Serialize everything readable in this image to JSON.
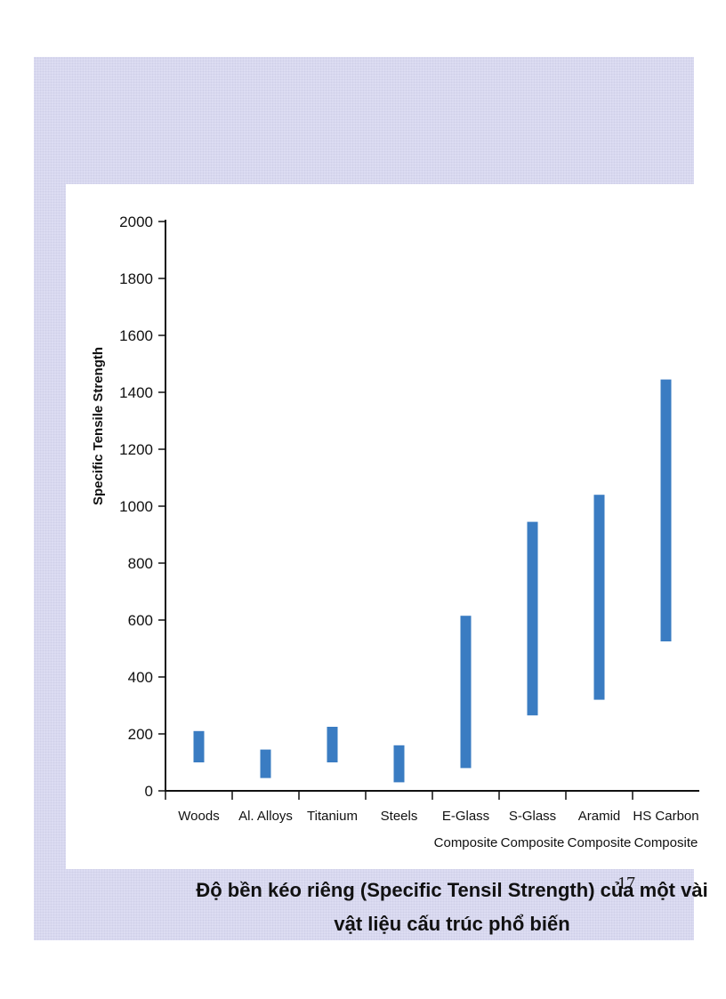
{
  "slide": {
    "caption_line1": "Độ bền kéo riêng (Specific Tensil Strength) của một vài",
    "caption_line2": "vật liệu cấu trúc phổ biến",
    "page_number": "17"
  },
  "colors": {
    "bar": "#3a7cc2",
    "axis": "#111111"
  },
  "chart_data": {
    "type": "bar",
    "subtype": "floating-range",
    "title": "",
    "xlabel": "",
    "ylabel": "Specific Tensile Strength",
    "ylim": [
      0,
      2000
    ],
    "yticks": [
      "0",
      "200",
      "400",
      "600",
      "800",
      "1000",
      "1200",
      "1400",
      "1600",
      "1800",
      "2000"
    ],
    "grid": false,
    "categories": [
      [
        "Woods"
      ],
      [
        "Al. Alloys"
      ],
      [
        "Titanium"
      ],
      [
        "Steels"
      ],
      [
        "E-Glass",
        "Composite"
      ],
      [
        "S-Glass",
        "Composite"
      ],
      [
        "Aramid",
        "Composite"
      ],
      [
        "HS Carbon",
        "Composite"
      ]
    ],
    "series": [
      {
        "name": "Specific Tensile Strength range",
        "low": [
          100,
          45,
          100,
          30,
          80,
          265,
          320,
          525
        ],
        "high": [
          210,
          145,
          225,
          160,
          615,
          945,
          1040,
          1445
        ]
      }
    ]
  }
}
